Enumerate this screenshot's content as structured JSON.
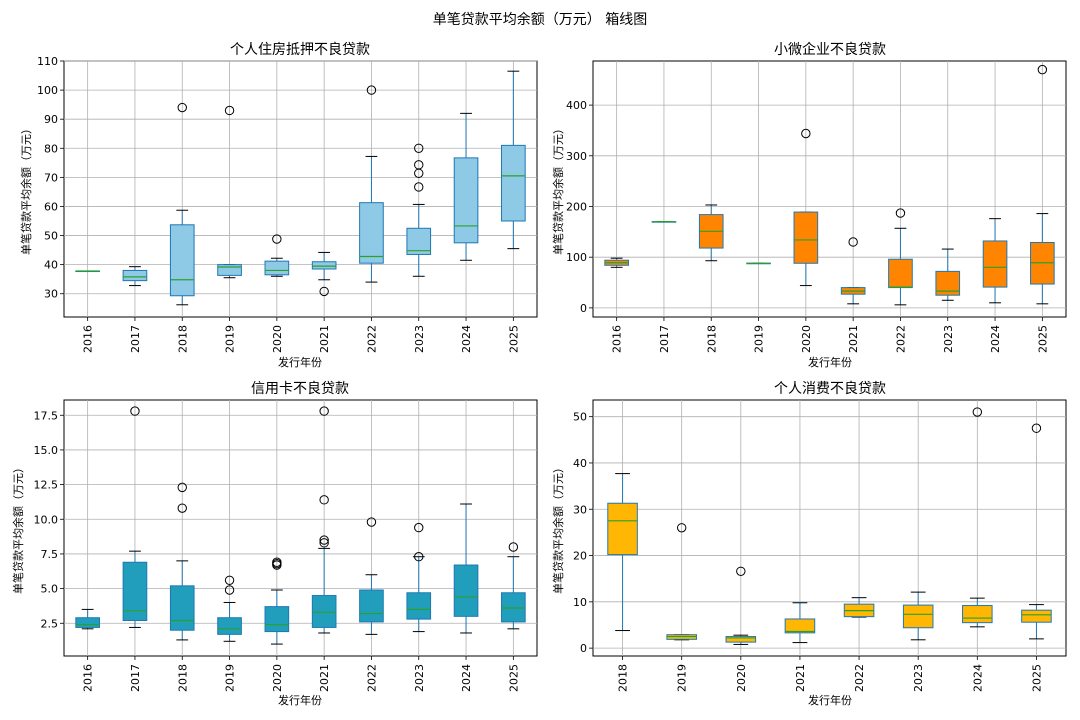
{
  "figure_title": "单笔贷款平均余额（万元） 箱线图",
  "colors": {
    "box_edge": "#1f77b4",
    "whisker": "#1f77b4",
    "median": "#2ca02c",
    "cap": "#000000",
    "grid": "#b0b0b0",
    "flier_edge": "#000000"
  },
  "chart_data": [
    {
      "type": "box",
      "title": "个人住房抵押不良贷款",
      "xlabel": "发行年份",
      "ylabel": "单笔贷款平均余额（万元）",
      "fill": "#8ecae6",
      "ylim": [
        22,
        110
      ],
      "yticks": [
        30,
        40,
        50,
        60,
        70,
        80,
        90,
        100,
        110
      ],
      "ytick_labels": [
        "30",
        "40",
        "50",
        "60",
        "70",
        "80",
        "90",
        "100",
        "110"
      ],
      "boxes": [
        {
          "year": "2016",
          "whislo": 37.8,
          "q1": 37.8,
          "med": 37.8,
          "q3": 37.8,
          "whishi": 37.8,
          "fliers": []
        },
        {
          "year": "2017",
          "whislo": 32.8,
          "q1": 34.5,
          "med": 35.8,
          "q3": 38.0,
          "whishi": 39.3,
          "fliers": []
        },
        {
          "year": "2018",
          "whislo": 26.2,
          "q1": 29.3,
          "med": 34.8,
          "q3": 53.7,
          "whishi": 58.7,
          "fliers": [
            94
          ]
        },
        {
          "year": "2019",
          "whislo": 35.5,
          "q1": 36.3,
          "med": 39.2,
          "q3": 40.0,
          "whishi": 40.0,
          "fliers": [
            93
          ]
        },
        {
          "year": "2020",
          "whislo": 36.0,
          "q1": 36.5,
          "med": 38.0,
          "q3": 41.2,
          "whishi": 42.2,
          "fliers": [
            48.8
          ]
        },
        {
          "year": "2021",
          "whislo": 34.8,
          "q1": 38.5,
          "med": 39.5,
          "q3": 41.0,
          "whishi": 44.2,
          "fliers": [
            30.8
          ]
        },
        {
          "year": "2022",
          "whislo": 34.0,
          "q1": 40.5,
          "med": 42.8,
          "q3": 61.3,
          "whishi": 77.2,
          "fliers": [
            100
          ]
        },
        {
          "year": "2023",
          "whislo": 36.0,
          "q1": 43.5,
          "med": 44.8,
          "q3": 52.5,
          "whishi": 60.7,
          "fliers": [
            66.7,
            71.4,
            74.3,
            80.0
          ]
        },
        {
          "year": "2024",
          "whislo": 41.5,
          "q1": 47.5,
          "med": 53.3,
          "q3": 76.7,
          "whishi": 92.0,
          "fliers": []
        },
        {
          "year": "2025",
          "whislo": 45.5,
          "q1": 55.0,
          "med": 70.5,
          "q3": 81.0,
          "whishi": 106.5,
          "fliers": []
        }
      ]
    },
    {
      "type": "box",
      "title": "小微企业不良贷款",
      "xlabel": "发行年份",
      "ylabel": "单笔贷款平均余额（万元）",
      "fill": "#ff8500",
      "ylim": [
        -18,
        487
      ],
      "yticks": [
        0,
        100,
        200,
        300,
        400
      ],
      "ytick_labels": [
        "0",
        "100",
        "200",
        "300",
        "400"
      ],
      "boxes": [
        {
          "year": "2016",
          "whislo": 80,
          "q1": 84,
          "med": 89,
          "q3": 94,
          "whishi": 98,
          "fliers": []
        },
        {
          "year": "2017",
          "whislo": 170,
          "q1": 170,
          "med": 170,
          "q3": 170,
          "whishi": 170,
          "fliers": []
        },
        {
          "year": "2018",
          "whislo": 93,
          "q1": 118,
          "med": 151,
          "q3": 184,
          "whishi": 203,
          "fliers": []
        },
        {
          "year": "2019",
          "whislo": 88,
          "q1": 88,
          "med": 88,
          "q3": 88,
          "whishi": 88,
          "fliers": []
        },
        {
          "year": "2020",
          "whislo": 44,
          "q1": 88,
          "med": 134,
          "q3": 189,
          "whishi": 189,
          "fliers": [
            344
          ]
        },
        {
          "year": "2021",
          "whislo": 8,
          "q1": 27,
          "med": 33,
          "q3": 40,
          "whishi": 40,
          "fliers": [
            130
          ]
        },
        {
          "year": "2022",
          "whislo": 6,
          "q1": 40,
          "med": 41,
          "q3": 96,
          "whishi": 157,
          "fliers": [
            187
          ]
        },
        {
          "year": "2023",
          "whislo": 15,
          "q1": 25,
          "med": 33,
          "q3": 72,
          "whishi": 116,
          "fliers": []
        },
        {
          "year": "2024",
          "whislo": 10,
          "q1": 41,
          "med": 80,
          "q3": 132,
          "whishi": 176,
          "fliers": []
        },
        {
          "year": "2025",
          "whislo": 8,
          "q1": 47,
          "med": 89,
          "q3": 129,
          "whishi": 186,
          "fliers": [
            470
          ]
        }
      ]
    },
    {
      "type": "box",
      "title": "信用卡不良贷款",
      "xlabel": "发行年份",
      "ylabel": "单笔贷款平均余额（万元）",
      "fill": "#219ebc",
      "ylim": [
        0.14,
        18.6
      ],
      "yticks": [
        2.5,
        5.0,
        7.5,
        10.0,
        12.5,
        15.0,
        17.5
      ],
      "ytick_labels": [
        "2.5",
        "5.0",
        "7.5",
        "10.0",
        "12.5",
        "15.0",
        "17.5"
      ],
      "boxes": [
        {
          "year": "2016",
          "whislo": 2.1,
          "q1": 2.2,
          "med": 2.4,
          "q3": 2.9,
          "whishi": 3.5,
          "fliers": []
        },
        {
          "year": "2017",
          "whislo": 2.2,
          "q1": 2.7,
          "med": 3.4,
          "q3": 6.9,
          "whishi": 7.7,
          "fliers": [
            17.8
          ]
        },
        {
          "year": "2018",
          "whislo": 1.3,
          "q1": 2.0,
          "med": 2.7,
          "q3": 5.2,
          "whishi": 7.0,
          "fliers": [
            10.8,
            12.3
          ]
        },
        {
          "year": "2019",
          "whislo": 1.2,
          "q1": 1.7,
          "med": 2.1,
          "q3": 2.9,
          "whishi": 4.0,
          "fliers": [
            4.9,
            5.6
          ]
        },
        {
          "year": "2020",
          "whislo": 1.0,
          "q1": 1.9,
          "med": 2.4,
          "q3": 3.7,
          "whishi": 4.9,
          "fliers": [
            6.7,
            6.8,
            6.9
          ]
        },
        {
          "year": "2021",
          "whislo": 1.8,
          "q1": 2.2,
          "med": 3.3,
          "q3": 4.5,
          "whishi": 7.9,
          "fliers": [
            8.3,
            8.5,
            11.4,
            17.8
          ]
        },
        {
          "year": "2022",
          "whislo": 1.7,
          "q1": 2.6,
          "med": 3.2,
          "q3": 4.9,
          "whishi": 6.0,
          "fliers": [
            9.8
          ]
        },
        {
          "year": "2023",
          "whislo": 1.9,
          "q1": 2.8,
          "med": 3.5,
          "q3": 4.7,
          "whishi": 7.3,
          "fliers": [
            7.3,
            9.4
          ]
        },
        {
          "year": "2024",
          "whislo": 1.8,
          "q1": 3.0,
          "med": 4.4,
          "q3": 6.7,
          "whishi": 11.1,
          "fliers": []
        },
        {
          "year": "2025",
          "whislo": 2.1,
          "q1": 2.6,
          "med": 3.6,
          "q3": 4.7,
          "whishi": 7.3,
          "fliers": [
            8.0
          ]
        }
      ]
    },
    {
      "type": "box",
      "title": "个人消费不良贷款",
      "xlabel": "发行年份",
      "ylabel": "单笔贷款平均余额（万元）",
      "fill": "#ffb703",
      "ylim": [
        -1.7,
        53.6
      ],
      "yticks": [
        0,
        10,
        20,
        30,
        40,
        50
      ],
      "ytick_labels": [
        "0",
        "10",
        "20",
        "30",
        "40",
        "50"
      ],
      "boxes": [
        {
          "year": "2018",
          "whislo": 3.8,
          "q1": 20.2,
          "med": 27.5,
          "q3": 31.3,
          "whishi": 37.7,
          "fliers": []
        },
        {
          "year": "2019",
          "whislo": 1.8,
          "q1": 1.9,
          "med": 2.5,
          "q3": 2.9,
          "whishi": 2.9,
          "fliers": [
            26
          ]
        },
        {
          "year": "2020",
          "whislo": 0.8,
          "q1": 1.3,
          "med": 2.2,
          "q3": 2.5,
          "whishi": 2.8,
          "fliers": [
            16.6
          ]
        },
        {
          "year": "2021",
          "whislo": 1.2,
          "q1": 3.3,
          "med": 3.6,
          "q3": 6.3,
          "whishi": 9.8,
          "fliers": []
        },
        {
          "year": "2022",
          "whislo": 6.7,
          "q1": 6.8,
          "med": 8.1,
          "q3": 9.5,
          "whishi": 10.9,
          "fliers": []
        },
        {
          "year": "2023",
          "whislo": 1.8,
          "q1": 4.4,
          "med": 7.3,
          "q3": 9.3,
          "whishi": 12.1,
          "fliers": []
        },
        {
          "year": "2024",
          "whislo": 4.6,
          "q1": 5.5,
          "med": 6.5,
          "q3": 9.2,
          "whishi": 10.8,
          "fliers": [
            51
          ]
        },
        {
          "year": "2025",
          "whislo": 2.0,
          "q1": 5.6,
          "med": 7.2,
          "q3": 8.2,
          "whishi": 9.4,
          "fliers": [
            47.5
          ]
        }
      ]
    }
  ]
}
